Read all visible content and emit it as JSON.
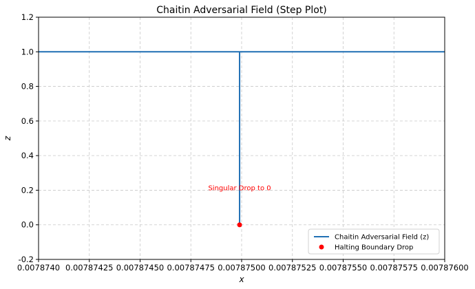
{
  "chart_data": {
    "type": "line",
    "title": "Chaitin Adversarial Field (Step Plot)",
    "xlabel": "x",
    "ylabel": "z",
    "xlim": [
      0.007874,
      0.007876
    ],
    "ylim": [
      -0.2,
      1.2
    ],
    "xticks": [
      0.007874,
      0.00787425,
      0.0078745,
      0.00787475,
      0.007875,
      0.00787525,
      0.0078755,
      0.00787575,
      0.007876
    ],
    "xtick_labels": [
      "0.0078740",
      "0.00787425",
      "0.00787450",
      "0.00787475",
      "0.00787500",
      "0.00787525",
      "0.00787550",
      "0.00787575",
      "0.00787600"
    ],
    "yticks": [
      -0.2,
      0.0,
      0.2,
      0.4,
      0.6,
      0.8,
      1.0,
      1.2
    ],
    "ytick_labels": [
      "-0.2",
      "0.0",
      "0.2",
      "0.4",
      "0.6",
      "0.8",
      "1.0",
      "1.2"
    ],
    "grid": true,
    "legend_position": "bottom-right",
    "series": [
      {
        "name": "Chaitin Adversarial Field (z)",
        "kind": "line",
        "color": "#1f6fb4",
        "x": [
          0.007874,
          0.00787499,
          0.00787499,
          0.00787499,
          0.007876
        ],
        "y": [
          1.0,
          1.0,
          0.0,
          1.0,
          1.0
        ]
      },
      {
        "name": "Halting Boundary Drop",
        "kind": "scatter",
        "color": "#ff0000",
        "x": [
          0.00787499
        ],
        "y": [
          0.0
        ]
      }
    ],
    "annotations": [
      {
        "text": "Singular Drop to 0",
        "x": 0.00787499,
        "y": 0.2,
        "color": "#ff0000"
      }
    ]
  }
}
